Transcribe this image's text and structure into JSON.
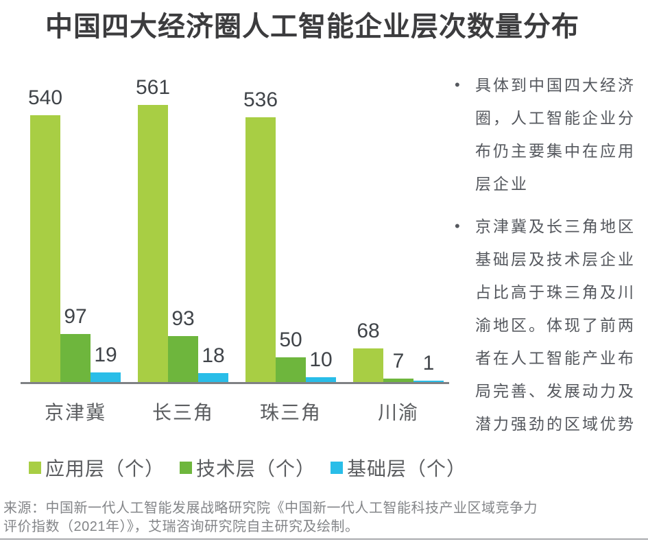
{
  "page": {
    "title": "中国四大经济圈人工智能企业层次数量分布",
    "source": "来源：中国新一代人工智能发展战略研究院《中国新一代人工智能科技产业区域竞争力\n评价指数（2021年）》，艾瑞咨询研究院自主研究及绘制。"
  },
  "chart_data": {
    "type": "bar",
    "title": "中国四大经济圈人工智能企业层次数量分布",
    "categories": [
      "京津冀",
      "长三角",
      "珠三角",
      "川渝"
    ],
    "series": [
      {
        "name": "应用层（个）",
        "key": "application-layer",
        "color": "#a8ce44",
        "values": [
          540,
          561,
          536,
          68
        ]
      },
      {
        "name": "技术层（个）",
        "key": "technology-layer",
        "color": "#6eb63d",
        "values": [
          97,
          93,
          50,
          7
        ]
      },
      {
        "name": "基础层（个）",
        "key": "basic-layer",
        "color": "#29bde8",
        "values": [
          19,
          18,
          10,
          1
        ]
      }
    ],
    "ylim": [
      0,
      580
    ],
    "grid": false,
    "legend_position": "bottom",
    "value_labels": true,
    "axis_line_color": "#7f8184"
  },
  "notes": {
    "bullets": [
      "具体到中国四大经济\n圈，人工智能企业分\n布仍主要集中在应用\n层企业",
      "京津冀及长三角地区\n基础层及技术层企业\n占比高于珠三角及川\n渝地区。体现了前两\n者在人工智能产业布\n局完善、发展动力及\n潜力强劲的区域优势"
    ]
  }
}
